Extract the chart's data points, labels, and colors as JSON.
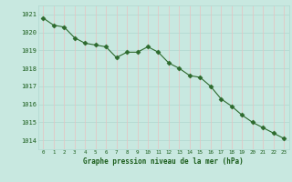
{
  "x": [
    0,
    1,
    2,
    3,
    4,
    5,
    6,
    7,
    8,
    9,
    10,
    11,
    12,
    13,
    14,
    15,
    16,
    17,
    18,
    19,
    20,
    21,
    22,
    23
  ],
  "y": [
    1020.8,
    1020.4,
    1020.3,
    1019.7,
    1019.4,
    1019.3,
    1019.2,
    1018.6,
    1018.9,
    1018.9,
    1019.2,
    1018.9,
    1018.3,
    1018.0,
    1017.6,
    1017.5,
    1017.0,
    1016.3,
    1015.9,
    1015.4,
    1015.0,
    1014.7,
    1014.4,
    1014.1
  ],
  "line_color": "#2d6a2d",
  "marker": "D",
  "marker_size": 2.5,
  "bg_color": "#c8e8e0",
  "grid_color_h": "#b0d8d0",
  "grid_color_v": "#e8c0c0",
  "xlabel": "Graphe pression niveau de la mer (hPa)",
  "tick_label_color": "#1a5c1a",
  "ylim": [
    1013.5,
    1021.5
  ],
  "yticks": [
    1014,
    1015,
    1016,
    1017,
    1018,
    1019,
    1020,
    1021
  ],
  "xlim": [
    -0.5,
    23.5
  ],
  "xticks": [
    0,
    1,
    2,
    3,
    4,
    5,
    6,
    7,
    8,
    9,
    10,
    11,
    12,
    13,
    14,
    15,
    16,
    17,
    18,
    19,
    20,
    21,
    22,
    23
  ]
}
